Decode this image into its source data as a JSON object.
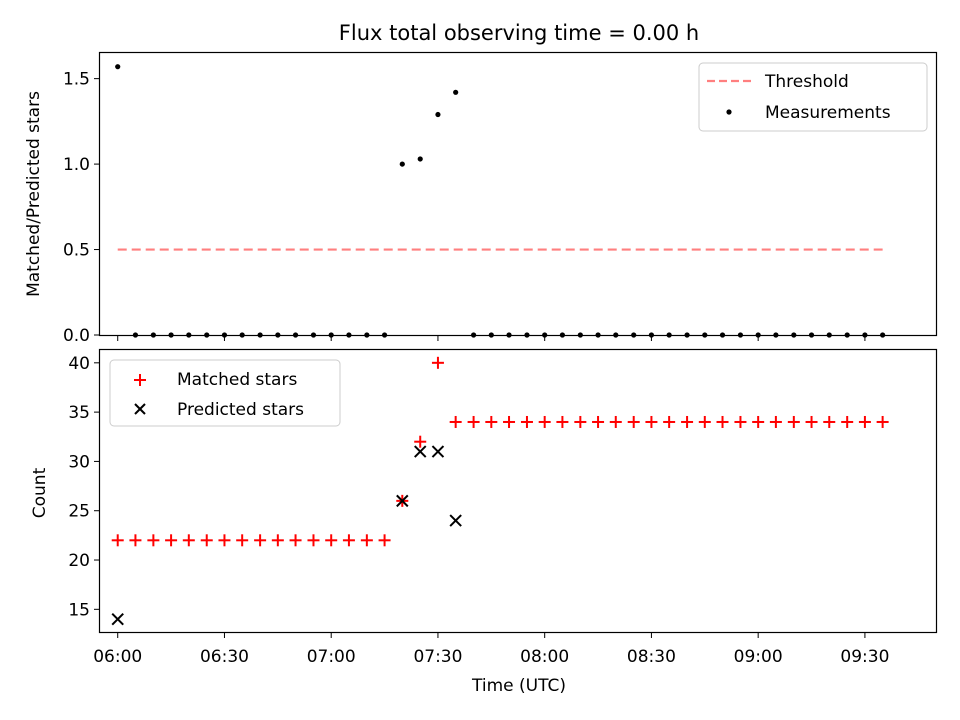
{
  "chart_data": [
    {
      "type": "scatter",
      "title": "Flux total observing time = 0.00 h",
      "ylabel": "Matched/Predicted stars",
      "xlabel": "",
      "x_axis": "time (h, 6.0 = 06:00 UTC)",
      "xlim": [
        5.917,
        9.833
      ],
      "ylim": [
        0,
        1.65
      ],
      "yticks": [
        0.0,
        0.5,
        1.0,
        1.5
      ],
      "ytick_labels": [
        "0.0",
        "0.5",
        "1.0",
        "1.5"
      ],
      "legend_position": "top-right",
      "series": [
        {
          "name": "Threshold",
          "kind": "dashed-line",
          "color": "#ff7f7f",
          "x": [
            6.0,
            9.583
          ],
          "y": [
            0.5,
            0.5
          ]
        },
        {
          "name": "Measurements",
          "kind": "points",
          "color": "#000000",
          "x": [
            6.0,
            6.083,
            6.167,
            6.25,
            6.333,
            6.417,
            6.5,
            6.583,
            6.667,
            6.75,
            6.833,
            6.917,
            7.0,
            7.083,
            7.167,
            7.25,
            7.333,
            7.417,
            7.5,
            7.583,
            7.667,
            7.75,
            7.833,
            7.917,
            8.0,
            8.083,
            8.167,
            8.25,
            8.333,
            8.417,
            8.5,
            8.583,
            8.667,
            8.75,
            8.833,
            8.917,
            9.0,
            9.083,
            9.167,
            9.25,
            9.333,
            9.417,
            9.5,
            9.583
          ],
          "y": [
            1.57,
            0,
            0,
            0,
            0,
            0,
            0,
            0,
            0,
            0,
            0,
            0,
            0,
            0,
            0,
            0,
            1.0,
            1.03,
            1.29,
            1.42,
            0,
            0,
            0,
            0,
            0,
            0,
            0,
            0,
            0,
            0,
            0,
            0,
            0,
            0,
            0,
            0,
            0,
            0,
            0,
            0,
            0,
            0,
            0,
            0
          ]
        }
      ]
    },
    {
      "type": "scatter",
      "title": "",
      "ylabel": "Count",
      "xlabel": "Time (UTC)",
      "x_axis": "time (h, 6.0 = 06:00 UTC)",
      "xlim": [
        5.917,
        9.833
      ],
      "ylim": [
        12.7,
        41.3
      ],
      "yticks": [
        15,
        20,
        25,
        30,
        35,
        40
      ],
      "ytick_labels": [
        "15",
        "20",
        "25",
        "30",
        "35",
        "40"
      ],
      "xticks": [
        6.0,
        6.5,
        7.0,
        7.5,
        8.0,
        8.5,
        9.0,
        9.5
      ],
      "xtick_labels": [
        "06:00",
        "06:30",
        "07:00",
        "07:30",
        "08:00",
        "08:30",
        "09:00",
        "09:30"
      ],
      "legend_position": "top-left",
      "series": [
        {
          "name": "Matched stars",
          "marker": "+",
          "color": "#ff0000",
          "x": [
            6.0,
            6.083,
            6.167,
            6.25,
            6.333,
            6.417,
            6.5,
            6.583,
            6.667,
            6.75,
            6.833,
            6.917,
            7.0,
            7.083,
            7.167,
            7.25,
            7.333,
            7.417,
            7.5,
            7.583,
            7.667,
            7.75,
            7.833,
            7.917,
            8.0,
            8.083,
            8.167,
            8.25,
            8.333,
            8.417,
            8.5,
            8.583,
            8.667,
            8.75,
            8.833,
            8.917,
            9.0,
            9.083,
            9.167,
            9.25,
            9.333,
            9.417,
            9.5,
            9.583
          ],
          "y": [
            22,
            22,
            22,
            22,
            22,
            22,
            22,
            22,
            22,
            22,
            22,
            22,
            22,
            22,
            22,
            22,
            26,
            32,
            40,
            34,
            34,
            34,
            34,
            34,
            34,
            34,
            34,
            34,
            34,
            34,
            34,
            34,
            34,
            34,
            34,
            34,
            34,
            34,
            34,
            34,
            34,
            34,
            34,
            34
          ]
        },
        {
          "name": "Predicted stars",
          "marker": "x",
          "color": "#000000",
          "x": [
            6.0,
            7.333,
            7.417,
            7.5,
            7.583
          ],
          "y": [
            14,
            26,
            31,
            31,
            24
          ]
        }
      ]
    }
  ]
}
